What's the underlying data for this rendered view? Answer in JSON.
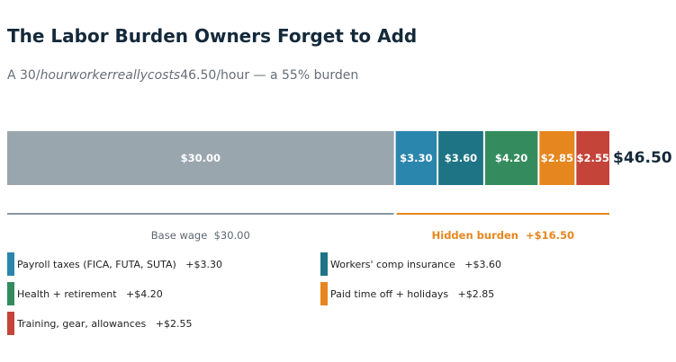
{
  "chart_data": {
    "type": "bar",
    "orientation": "horizontal-stacked",
    "title": "The Labor Burden Owners Forget to Add",
    "subtitle": {
      "pre": "A 30/",
      "italic": "hourworkerreallycosts",
      "post": "46.50/hour  —  a 55% burden"
    },
    "total": 46.5,
    "total_label": "$46.50",
    "segments": [
      {
        "value": 30.0,
        "label": "$30.00",
        "color": "#9aa6ae"
      },
      {
        "value": 3.3,
        "label": "$3.30",
        "color": "#2b86ad"
      },
      {
        "value": 3.6,
        "label": "$3.60",
        "color": "#1e7484"
      },
      {
        "value": 4.2,
        "label": "$4.20",
        "color": "#348c5e"
      },
      {
        "value": 2.85,
        "label": "$2.85",
        "color": "#e6861e"
      },
      {
        "value": 2.55,
        "label": "$2.55",
        "color": "#c4443a"
      }
    ],
    "brackets": {
      "base": {
        "label": "Base wage  $30.00",
        "color": "#8a97a0",
        "text_color": "#5c6770"
      },
      "hidden": {
        "label": "Hidden burden  +$16.50",
        "color": "#e6861e",
        "text_color": "#e6861e"
      }
    },
    "legend": [
      {
        "label": "Payroll taxes (FICA, FUTA, SUTA)   +$3.30",
        "color": "#2b86ad"
      },
      {
        "label": "Workers' comp insurance   +$3.60",
        "color": "#1e7484"
      },
      {
        "label": "Health + retirement   +$4.20",
        "color": "#348c5e"
      },
      {
        "label": "Paid time off + holidays   +$2.85",
        "color": "#e6861e"
      },
      {
        "label": "Training, gear, allowances   +$2.55",
        "color": "#c4443a"
      }
    ]
  }
}
